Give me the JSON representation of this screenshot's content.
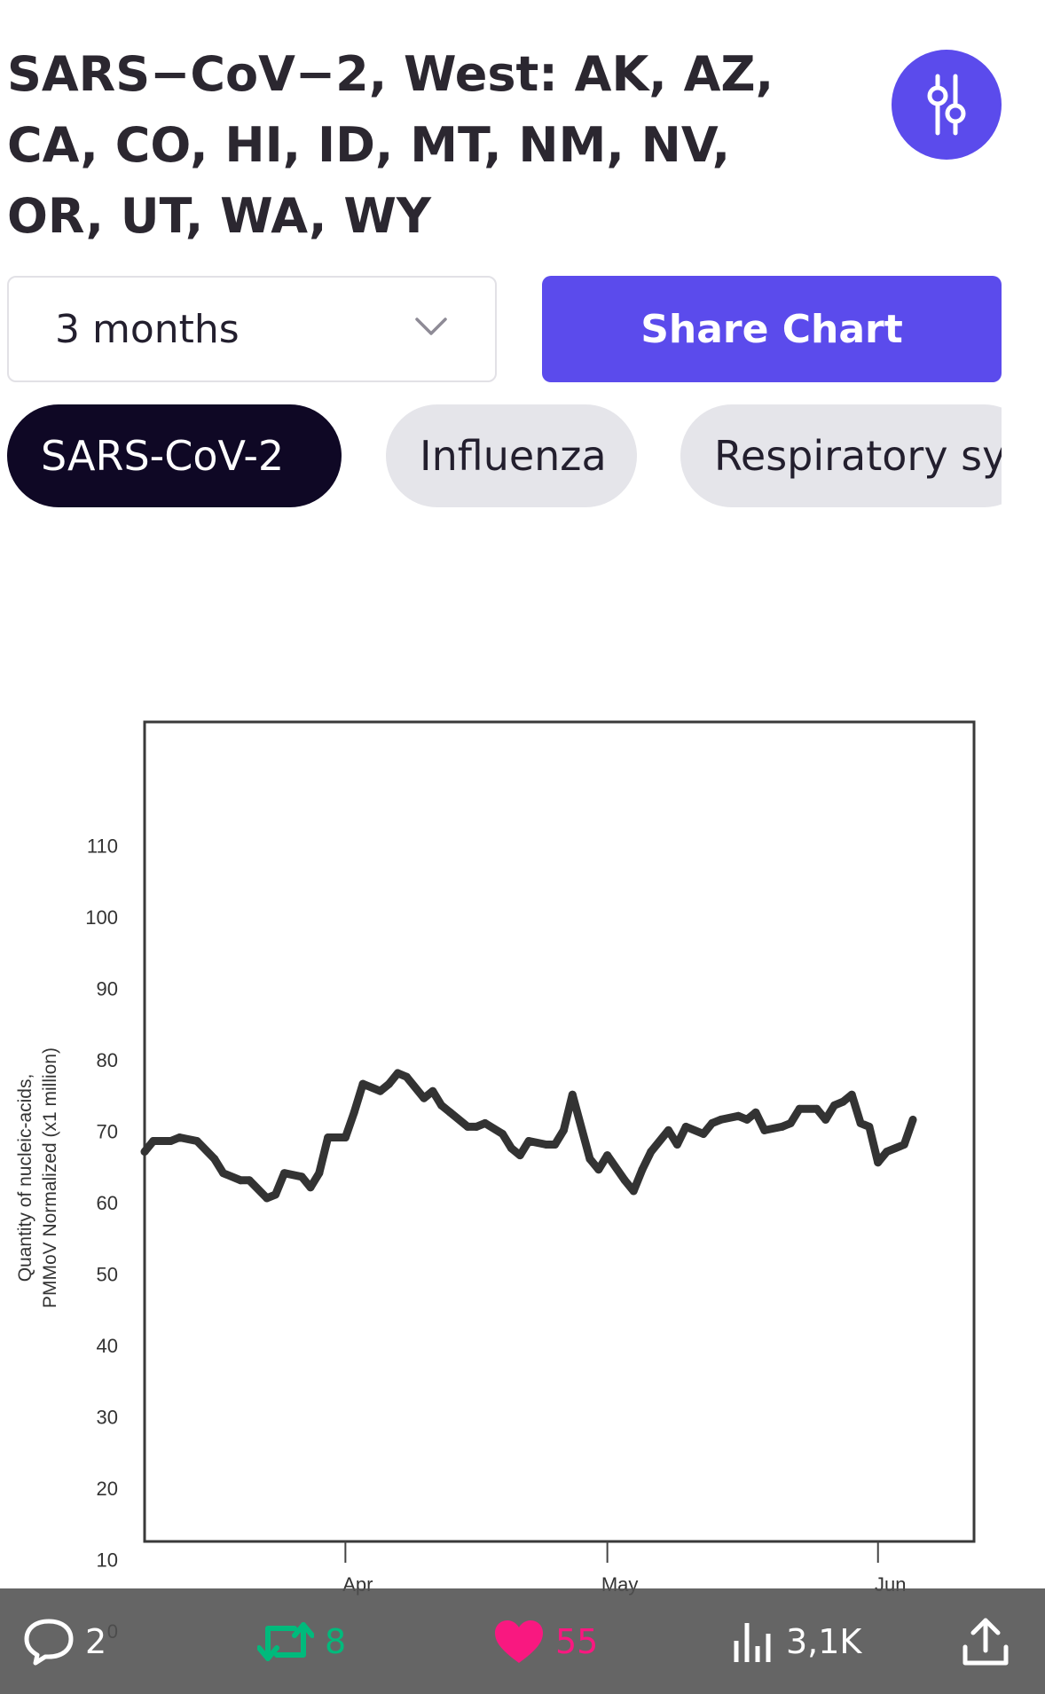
{
  "header": {
    "title": "SARS−CoV−2, West: AK, AZ, CA, CO, HI, ID, MT, NM, NV, OR, UT, WA, WY",
    "filter_icon": "sliders-icon"
  },
  "controls": {
    "range_selected": "3 months",
    "share_label": "Share Chart"
  },
  "tabs": [
    {
      "label": "SARS-CoV-2",
      "active": true
    },
    {
      "label": "Influenza",
      "active": false
    },
    {
      "label": "Respiratory sy",
      "active": false
    }
  ],
  "colors": {
    "accent": "#5b4bec",
    "active_chip": "#0f0825",
    "idle_chip": "#e5e5ea",
    "line": "#333333",
    "retweet": "#00ba7c",
    "like": "#f91880"
  },
  "chart_data": {
    "type": "line",
    "ylabel_lines": [
      "Quantity of nucleic-acids,",
      "PMMoV Normalized (x1 million)"
    ],
    "ylim": [
      0,
      118
    ],
    "y_ticks": [
      0,
      10,
      20,
      30,
      40,
      50,
      60,
      70,
      80,
      90,
      100,
      110
    ],
    "x_ticks": [
      "Apr",
      "May",
      "Jun"
    ],
    "x_tick_dates": [
      "2024-04-01",
      "2024-05-01",
      "2024-06-01"
    ],
    "xlim": [
      "2024-03-09",
      "2024-06-12"
    ],
    "grid": false,
    "series": [
      {
        "x": [
          "2024-03-09",
          "2024-03-10",
          "2024-03-12",
          "2024-03-13",
          "2024-03-15",
          "2024-03-17",
          "2024-03-18",
          "2024-03-20",
          "2024-03-21",
          "2024-03-23",
          "2024-03-24",
          "2024-03-25",
          "2024-03-27",
          "2024-03-28",
          "2024-03-29",
          "2024-03-30",
          "2024-04-01",
          "2024-04-02",
          "2024-04-03",
          "2024-04-05",
          "2024-04-06",
          "2024-04-07",
          "2024-04-08",
          "2024-04-10",
          "2024-04-11",
          "2024-04-12",
          "2024-04-13",
          "2024-04-15",
          "2024-04-16",
          "2024-04-17",
          "2024-04-19",
          "2024-04-20",
          "2024-04-21",
          "2024-04-22",
          "2024-04-24",
          "2024-04-25",
          "2024-04-26",
          "2024-04-27",
          "2024-04-29",
          "2024-04-30",
          "2024-05-01",
          "2024-05-03",
          "2024-05-04",
          "2024-05-05",
          "2024-05-06",
          "2024-05-08",
          "2024-05-09",
          "2024-05-10",
          "2024-05-12",
          "2024-05-13",
          "2024-05-14",
          "2024-05-16",
          "2024-05-17",
          "2024-05-18",
          "2024-05-19",
          "2024-05-21",
          "2024-05-22",
          "2024-05-23",
          "2024-05-25",
          "2024-05-26",
          "2024-05-27",
          "2024-05-28",
          "2024-05-29",
          "2024-05-30",
          "2024-05-31",
          "2024-06-01",
          "2024-06-02",
          "2024-06-03",
          "2024-06-04",
          "2024-06-05"
        ],
        "y": [
          67,
          68.5,
          68.5,
          69,
          68.5,
          66,
          64,
          63,
          63,
          60.5,
          61,
          64,
          63.5,
          62,
          64,
          69,
          69,
          72.5,
          76.5,
          75.5,
          76.5,
          78,
          77.5,
          74.5,
          75.5,
          73.5,
          72.5,
          70.5,
          70.5,
          71,
          69.5,
          67.5,
          66.5,
          68.5,
          68,
          68,
          70,
          75,
          66,
          64.5,
          66.5,
          63,
          61.5,
          64.5,
          67,
          70,
          68,
          70.5,
          69.5,
          71,
          71.5,
          72,
          71.5,
          72.5,
          70,
          70.5,
          71,
          73,
          73,
          71.5,
          73.5,
          74,
          75,
          71,
          70.5,
          65.5,
          67,
          67.5,
          68,
          71.5
        ]
      }
    ]
  },
  "bottom_bar": {
    "reply_count": "2",
    "retweet_count": "8",
    "like_count": "55",
    "views_count": "3,1K",
    "icons": [
      "reply-icon",
      "retweet-icon",
      "like-icon",
      "views-icon",
      "share-icon"
    ]
  }
}
